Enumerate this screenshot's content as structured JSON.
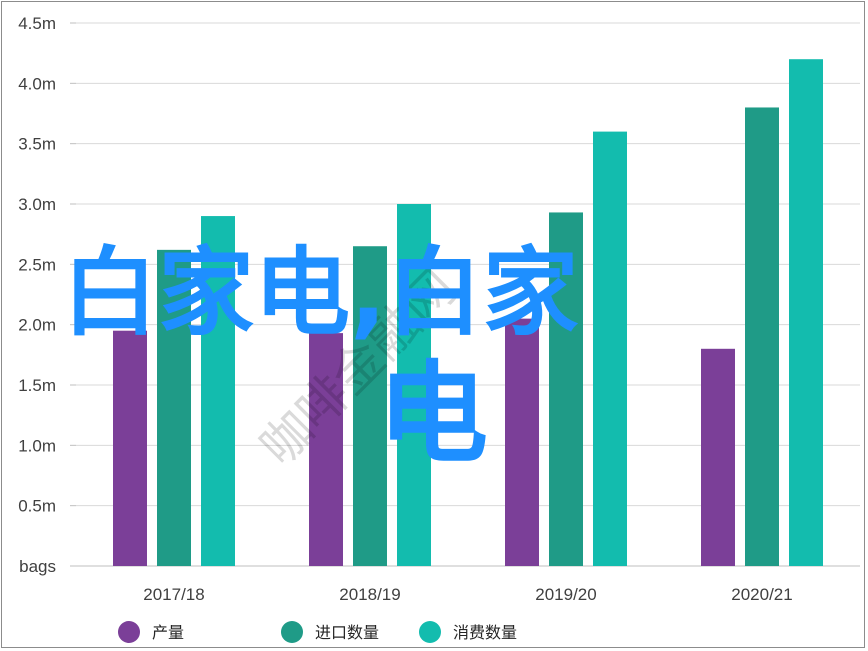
{
  "chart_data": {
    "type": "bar",
    "categories": [
      "2017/18",
      "2018/19",
      "2019/20",
      "2020/21"
    ],
    "series": [
      {
        "name": "产量",
        "color": "#7b3f98",
        "values": [
          1.95,
          1.93,
          2.05,
          1.8
        ]
      },
      {
        "name": "进口数量",
        "color": "#1f9b87",
        "values": [
          2.62,
          2.65,
          2.93,
          3.8
        ]
      },
      {
        "name": "消费数量",
        "color": "#13bcae",
        "values": [
          2.9,
          3.0,
          3.6,
          4.2
        ]
      }
    ],
    "yticks": [
      "bags",
      "0.5m",
      "1.0m",
      "1.5m",
      "2.0m",
      "2.5m",
      "3.0m",
      "3.5m",
      "4.0m",
      "4.5m"
    ],
    "ylim": [
      0,
      4.5
    ],
    "grid": true,
    "legend_position": "bottom"
  },
  "overlay": {
    "line1": "白家电,白家",
    "line2": "电",
    "watermark": "咖啡金融网",
    "color": "#1e8fff"
  }
}
